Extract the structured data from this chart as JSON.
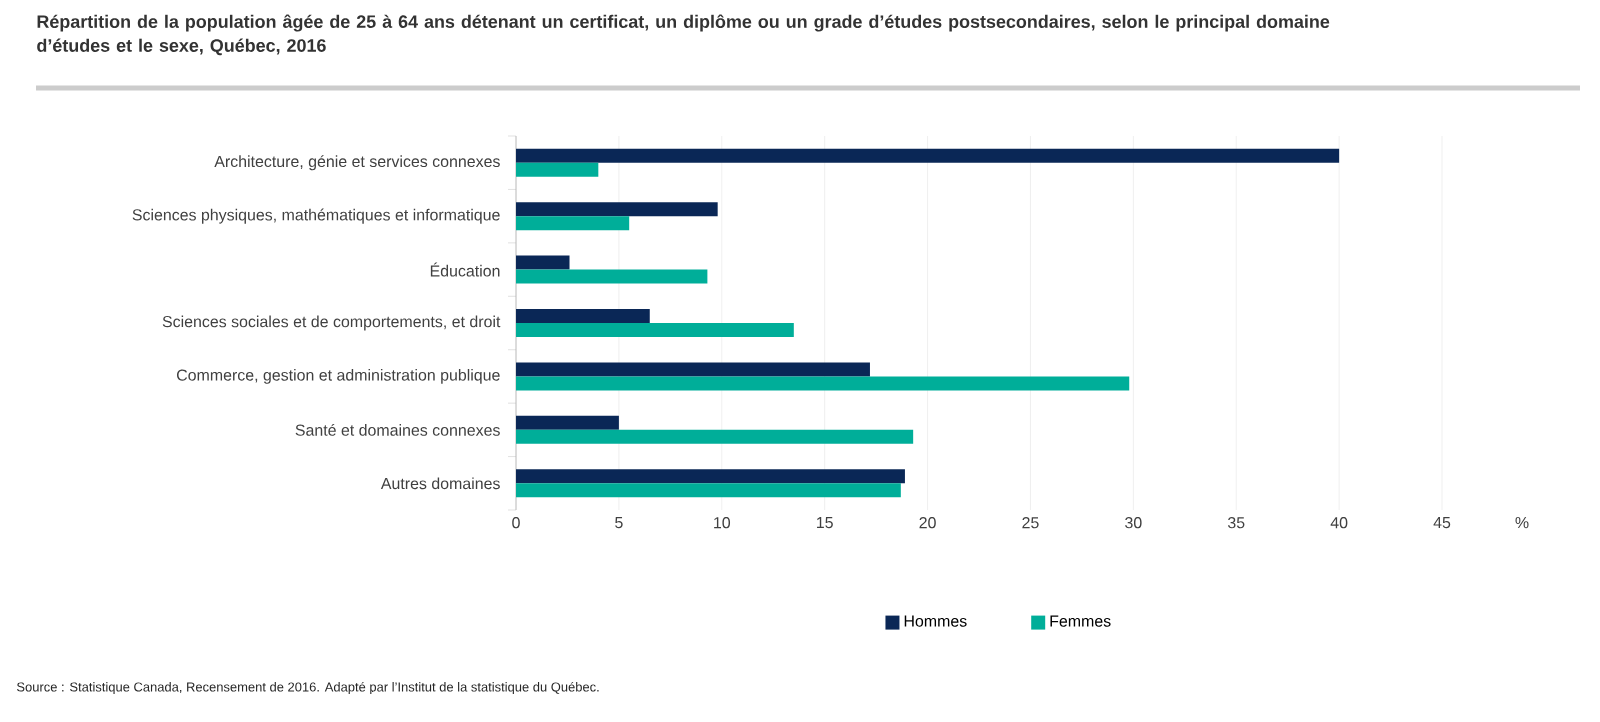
{
  "chart_data": {
    "type": "bar",
    "orientation": "horizontal",
    "title": "Répartition de la population âgée de 25 à 64 ans détenant un certificat, un diplôme ou un grade d’études postsecondaires, selon le principal domaine d’études et le sexe, Québec, 2016",
    "xlabel": "%",
    "categories": [
      "Architecture, génie et services connexes",
      "Sciences physiques, mathématiques et informatique",
      "Éducation",
      "Sciences sociales et de comportements, et droit",
      "Commerce, gestion et administration publique",
      "Santé et domaines connexes",
      "Autres domaines"
    ],
    "series": [
      {
        "name": "Hommes",
        "color": "#0a2756",
        "values": [
          40.0,
          9.8,
          2.6,
          6.5,
          17.2,
          5.0,
          18.9
        ]
      },
      {
        "name": "Femmes",
        "color": "#00ae99",
        "values": [
          4.0,
          5.5,
          9.3,
          13.5,
          29.8,
          19.3,
          18.7
        ]
      }
    ],
    "xlim": [
      0,
      45
    ],
    "xticks": [
      0,
      5,
      10,
      15,
      20,
      25,
      30,
      35,
      40,
      45
    ],
    "grid": "x",
    "legend": "bottom",
    "annotations": [
      "Source :   Statistique Canada, Recensement de 2016. Adapté par l’Institut de la statistique du Québec."
    ]
  }
}
